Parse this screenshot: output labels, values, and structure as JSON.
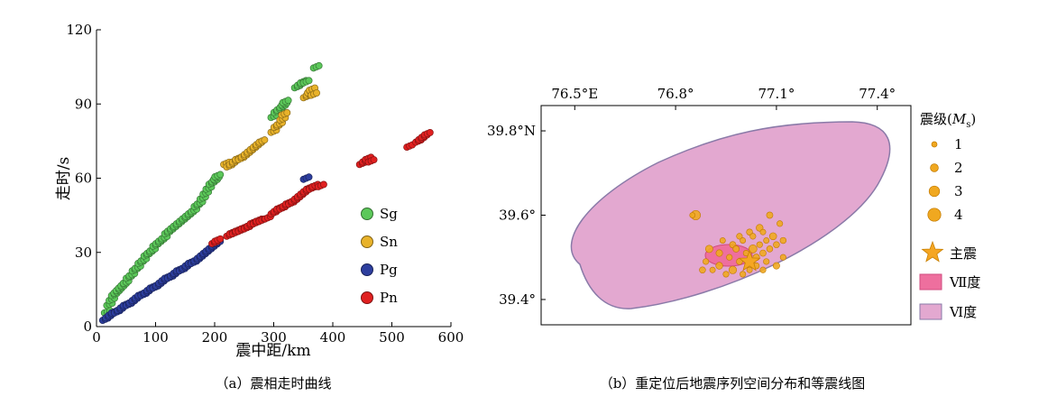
{
  "chart_data": [
    {
      "type": "scatter",
      "caption": "（a）震相走时曲线",
      "xlabel": "震中距/km",
      "ylabel": "走时/s",
      "xlim": [
        0,
        600
      ],
      "ylim": [
        0,
        120
      ],
      "x_ticks": [
        "0",
        "100",
        "200",
        "300",
        "400",
        "500",
        "600"
      ],
      "y_ticks": [
        "0",
        "30",
        "60",
        "90",
        "120"
      ],
      "legend_position": "right",
      "series": [
        {
          "name": "Sg",
          "color": "#5cc85a",
          "x": [
            18,
            22,
            26,
            30,
            34,
            38,
            42,
            46,
            50,
            55,
            60,
            65,
            70,
            75,
            80,
            85,
            90,
            95,
            100,
            105,
            110,
            115,
            120,
            125,
            130,
            135,
            140,
            145,
            150,
            155,
            160,
            165,
            170,
            175,
            180,
            185,
            190,
            195,
            200,
            203,
            205,
            300,
            305,
            310,
            315,
            318,
            320,
            340,
            345,
            350,
            355,
            372
          ],
          "y": [
            6,
            9,
            11,
            13,
            14,
            15,
            16,
            17,
            18,
            20,
            21,
            23,
            24,
            26,
            27,
            29,
            30,
            31,
            33,
            34,
            35,
            36,
            38,
            39,
            40,
            41,
            42,
            43,
            44,
            45,
            46,
            47,
            49,
            50,
            52,
            54,
            56,
            58,
            59,
            60,
            61,
            85,
            87,
            88,
            89,
            90,
            91,
            97,
            98,
            99,
            99,
            105
          ]
        },
        {
          "name": "Sn",
          "color": "#e8b22a",
          "x": [
            220,
            225,
            230,
            235,
            240,
            245,
            250,
            255,
            260,
            265,
            270,
            275,
            280,
            300,
            305,
            310,
            315,
            318,
            355,
            360,
            362,
            365,
            368
          ],
          "y": [
            66,
            65,
            66,
            67,
            68,
            68,
            69,
            70,
            71,
            72,
            73,
            74,
            75,
            79,
            81,
            82,
            84,
            86,
            93,
            94,
            95,
            96,
            94
          ]
        },
        {
          "name": "Pg",
          "color": "#2d3e9e",
          "x": [
            15,
            20,
            25,
            30,
            35,
            40,
            45,
            50,
            55,
            60,
            65,
            70,
            75,
            80,
            85,
            90,
            95,
            100,
            105,
            110,
            115,
            120,
            125,
            130,
            135,
            140,
            145,
            150,
            155,
            160,
            165,
            170,
            175,
            180,
            185,
            190,
            195,
            200,
            205,
            355
          ],
          "y": [
            3,
            4,
            5,
            6,
            6,
            7,
            8,
            9,
            9,
            10,
            11,
            12,
            13,
            13,
            14,
            15,
            16,
            16,
            17,
            18,
            19,
            20,
            20,
            21,
            22,
            23,
            23,
            24,
            25,
            26,
            26,
            27,
            28,
            29,
            30,
            31,
            32,
            33,
            34,
            60
          ]
        },
        {
          "name": "Pn",
          "color": "#e02020",
          "x": [
            200,
            205,
            225,
            230,
            235,
            240,
            245,
            250,
            255,
            260,
            265,
            270,
            275,
            280,
            290,
            300,
            305,
            310,
            315,
            320,
            325,
            330,
            335,
            340,
            345,
            350,
            355,
            360,
            365,
            370,
            380,
            450,
            455,
            460,
            465,
            530,
            545,
            550,
            555,
            560
          ],
          "y": [
            34,
            35,
            37,
            38,
            38,
            39,
            39,
            40,
            40,
            41,
            42,
            42,
            43,
            43,
            44,
            46,
            47,
            48,
            48,
            49,
            50,
            50,
            51,
            52,
            53,
            54,
            55,
            56,
            56,
            57,
            57,
            66,
            67,
            68,
            67,
            73,
            75,
            76,
            77,
            78
          ]
        }
      ]
    },
    {
      "type": "map",
      "caption": "（b）重定位后地震序列空间分布和等震线图",
      "x_ticks": [
        "76.5°E",
        "76.8°",
        "77.1°",
        "77.4°"
      ],
      "x_tick_values": [
        76.5,
        76.8,
        77.1,
        77.4
      ],
      "y_ticks": [
        "39.8°N",
        "39.6°",
        "39.4°"
      ],
      "y_tick_values": [
        39.8,
        39.6,
        39.4
      ],
      "lon_range": [
        76.4,
        77.5
      ],
      "lat_range": [
        39.34,
        39.86
      ],
      "legend": {
        "magnitude_title_prefix": "震级(",
        "magnitude_title_M": "M",
        "magnitude_title_sub": "s",
        "magnitude_title_suffix": ")",
        "sizes": [
          "1",
          "2",
          "3",
          "4"
        ],
        "mainshock_label": "主震",
        "intensity_7_label": "Ⅶ度",
        "intensity_6_label": "Ⅵ度"
      },
      "colors": {
        "intensity_6": "#e3a8d0",
        "intensity_6_edge": "#8a7aa8",
        "intensity_7": "#ee6f9e",
        "event": "#f0a820",
        "event_edge": "#c07800",
        "mainshock": "#f5a623"
      },
      "mainshock": {
        "lon": 77.02,
        "lat": 39.49
      },
      "events": [
        {
          "lon": 76.86,
          "lat": 39.6,
          "mag": 2.6
        },
        {
          "lon": 76.85,
          "lat": 39.6,
          "mag": 1
        },
        {
          "lon": 77.08,
          "lat": 39.6,
          "mag": 1.4
        },
        {
          "lon": 77.11,
          "lat": 39.58,
          "mag": 1.2
        },
        {
          "lon": 77.12,
          "lat": 39.54,
          "mag": 1.3
        },
        {
          "lon": 77.12,
          "lat": 39.5,
          "mag": 1.2
        },
        {
          "lon": 77.1,
          "lat": 39.48,
          "mag": 1.5
        },
        {
          "lon": 77.05,
          "lat": 39.57,
          "mag": 1.6
        },
        {
          "lon": 77.02,
          "lat": 39.56,
          "mag": 1.3
        },
        {
          "lon": 76.99,
          "lat": 39.55,
          "mag": 1.2
        },
        {
          "lon": 76.97,
          "lat": 39.53,
          "mag": 1.4
        },
        {
          "lon": 76.94,
          "lat": 39.54,
          "mag": 1.1
        },
        {
          "lon": 76.93,
          "lat": 39.51,
          "mag": 1.5
        },
        {
          "lon": 76.9,
          "lat": 39.52,
          "mag": 1.8
        },
        {
          "lon": 76.89,
          "lat": 39.49,
          "mag": 1.2
        },
        {
          "lon": 76.88,
          "lat": 39.47,
          "mag": 1.3
        },
        {
          "lon": 76.91,
          "lat": 39.47,
          "mag": 1.1
        },
        {
          "lon": 76.93,
          "lat": 39.48,
          "mag": 1.6
        },
        {
          "lon": 76.95,
          "lat": 39.46,
          "mag": 1.2
        },
        {
          "lon": 76.97,
          "lat": 39.47,
          "mag": 1.9
        },
        {
          "lon": 76.99,
          "lat": 39.49,
          "mag": 1.3
        },
        {
          "lon": 77.01,
          "lat": 39.51,
          "mag": 1.2
        },
        {
          "lon": 77.03,
          "lat": 39.52,
          "mag": 2.1
        },
        {
          "lon": 77.05,
          "lat": 39.53,
          "mag": 1.2
        },
        {
          "lon": 77.06,
          "lat": 39.51,
          "mag": 1.4
        },
        {
          "lon": 77.07,
          "lat": 39.54,
          "mag": 1.1
        },
        {
          "lon": 77.08,
          "lat": 39.52,
          "mag": 1.3
        },
        {
          "lon": 77.09,
          "lat": 39.55,
          "mag": 1.7
        },
        {
          "lon": 77.07,
          "lat": 39.49,
          "mag": 1.2
        },
        {
          "lon": 77.04,
          "lat": 39.48,
          "mag": 1.3
        },
        {
          "lon": 77.02,
          "lat": 39.47,
          "mag": 1.1
        },
        {
          "lon": 77.0,
          "lat": 39.46,
          "mag": 1.2
        },
        {
          "lon": 77.03,
          "lat": 39.55,
          "mag": 1.2
        },
        {
          "lon": 77.06,
          "lat": 39.56,
          "mag": 1.1
        },
        {
          "lon": 77.1,
          "lat": 39.53,
          "mag": 1.3
        },
        {
          "lon": 76.96,
          "lat": 39.5,
          "mag": 1.2
        },
        {
          "lon": 76.98,
          "lat": 39.52,
          "mag": 1.4
        },
        {
          "lon": 77.0,
          "lat": 39.54,
          "mag": 1.1
        },
        {
          "lon": 77.04,
          "lat": 39.5,
          "mag": 1.5
        },
        {
          "lon": 77.06,
          "lat": 39.47,
          "mag": 1.2
        }
      ]
    }
  ]
}
